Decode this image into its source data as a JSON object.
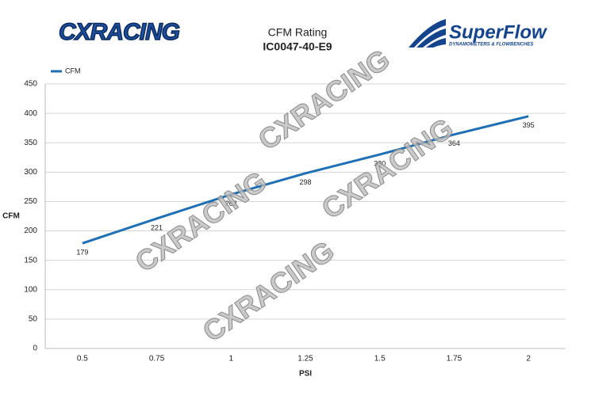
{
  "header": {
    "left_logo": "CXRACING",
    "right_logo": "SuperFlow",
    "right_logo_tagline": "DYNAMOMETERS & FLOWBENCHES"
  },
  "chart_data": {
    "type": "line",
    "title": "CFM Rating",
    "subtitle": "IC0047-40-E9",
    "x_label": "PSI",
    "y_label": "CFM",
    "categories": [
      "0.5",
      "0.75",
      "1",
      "1.25",
      "1.5",
      "1.75",
      "2"
    ],
    "series": [
      {
        "name": "CFM",
        "color": "#1f6fb5",
        "values": [
          179,
          221,
          262,
          298,
          330,
          364,
          395
        ]
      }
    ],
    "ylim": [
      0,
      450
    ],
    "yticks": [
      0,
      50,
      100,
      150,
      200,
      250,
      300,
      350,
      400,
      450
    ],
    "grid": true,
    "legend": "top-left",
    "data_labels": true,
    "watermarks": [
      "CXRACING",
      "CXRACING",
      "CXRACING",
      "CXRACING"
    ]
  }
}
